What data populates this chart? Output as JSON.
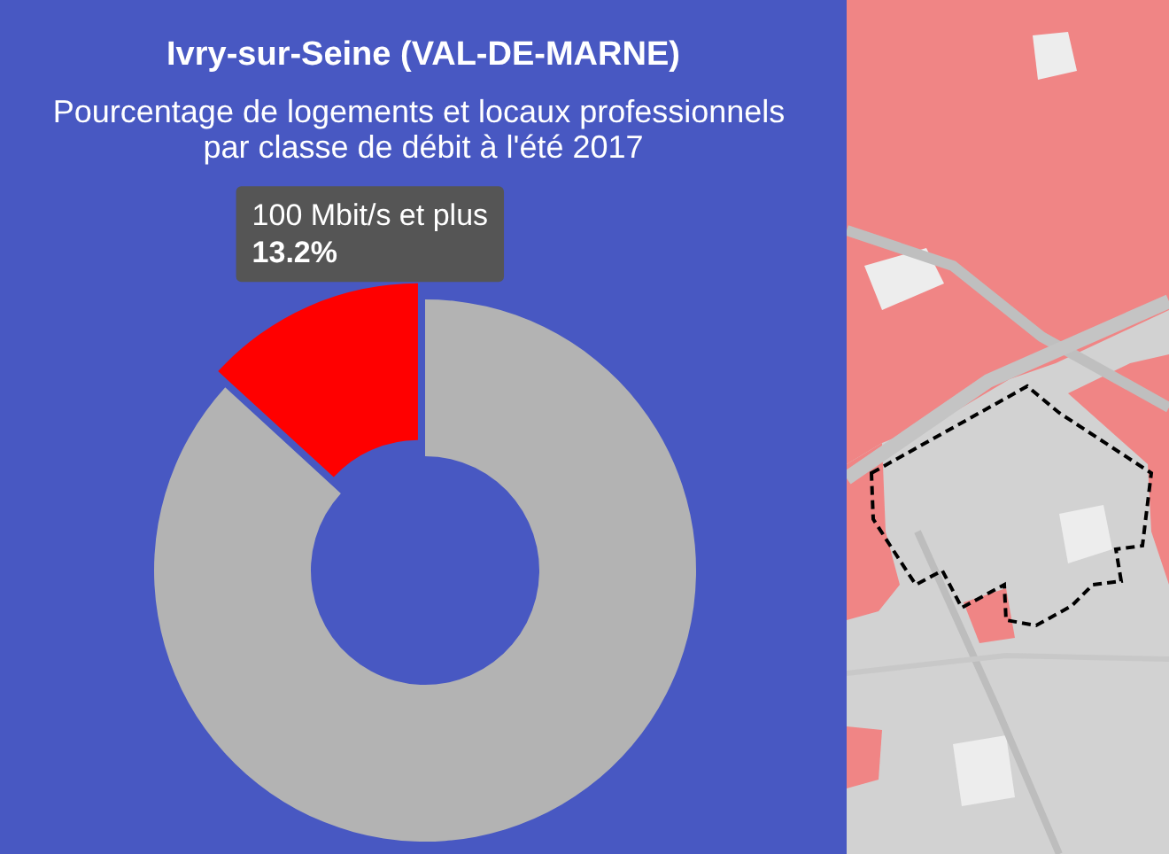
{
  "chart_data": {
    "type": "donut",
    "title": "Ivry-sur-Seine (VAL-DE-MARNE)",
    "subtitle": "Pourcentage de logements et locaux professionnels par classe de débit à l'été 2017",
    "categories": [
      null,
      "100 Mbit/s et plus"
    ],
    "values": [
      86.8,
      13.2
    ],
    "colors": [
      "#b3b3b3",
      "#ff0000"
    ],
    "value_labels": [
      null,
      "13.2%"
    ]
  }
}
